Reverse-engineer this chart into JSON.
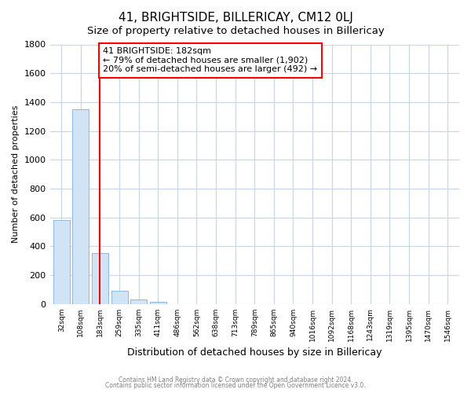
{
  "title1": "41, BRIGHTSIDE, BILLERICAY, CM12 0LJ",
  "title2": "Size of property relative to detached houses in Billericay",
  "xlabel": "Distribution of detached houses by size in Billericay",
  "ylabel": "Number of detached properties",
  "categories": [
    "32sqm",
    "108sqm",
    "183sqm",
    "259sqm",
    "335sqm",
    "411sqm",
    "486sqm",
    "562sqm",
    "638sqm",
    "713sqm",
    "789sqm",
    "865sqm",
    "940sqm",
    "1016sqm",
    "1092sqm",
    "1168sqm",
    "1243sqm",
    "1319sqm",
    "1395sqm",
    "1470sqm",
    "1546sqm"
  ],
  "bar_values": [
    580,
    1350,
    350,
    90,
    30,
    15,
    0,
    0,
    0,
    0,
    0,
    0,
    0,
    0,
    0,
    0,
    0,
    0,
    0,
    0,
    0
  ],
  "bar_color": "#d0e4f5",
  "bar_edge_color": "#90b8d8",
  "red_line_index": 2,
  "annotation_line1": "41 BRIGHTSIDE: 182sqm",
  "annotation_line2": "← 79% of detached houses are smaller (1,902)",
  "annotation_line3": "20% of semi-detached houses are larger (492) →",
  "annotation_box_color": "white",
  "annotation_box_edge_color": "red",
  "ylim": [
    0,
    1800
  ],
  "yticks": [
    0,
    200,
    400,
    600,
    800,
    1000,
    1200,
    1400,
    1600,
    1800
  ],
  "grid_color": "#c8d4e8",
  "footer1": "Contains HM Land Registry data © Crown copyright and database right 2024.",
  "footer2": "Contains public sector information licensed under the Open Government Licence v3.0.",
  "bg_color": "#ffffff",
  "title1_fontsize": 11,
  "title2_fontsize": 9.5,
  "annot_fontsize": 8,
  "ylabel_fontsize": 8,
  "xlabel_fontsize": 9
}
